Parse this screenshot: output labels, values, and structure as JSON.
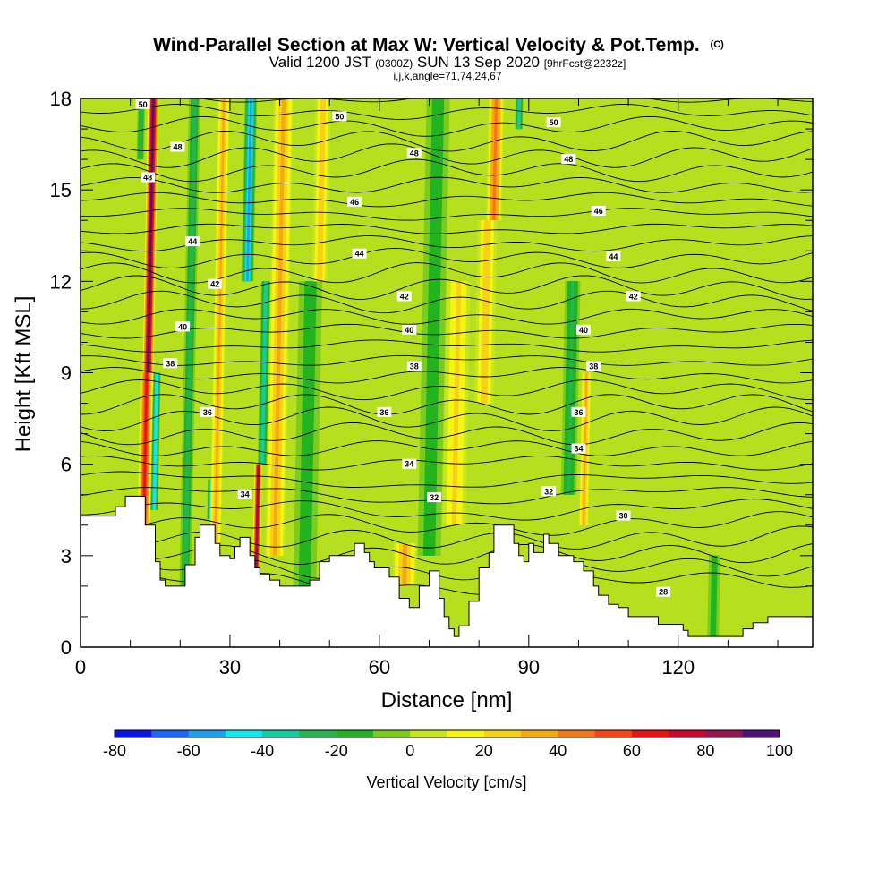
{
  "chart_data": {
    "type": "heatmap",
    "title": {
      "main": "Wind-Parallel Section at Max W: Vertical Velocity & Pot.Temp.",
      "copyright": "(C)",
      "valid_prefix": "Valid 1200 JST",
      "valid_utc": "(0300Z)",
      "valid_date": "SUN 13 Sep 2020",
      "forecast": "[9hrFcst@2232z]",
      "line3": "i,j,k,angle=71,74,24,67"
    },
    "xlabel": "Distance [nm]",
    "ylabel": "Height [Kft MSL]",
    "xlim": [
      0,
      147
    ],
    "ylim": [
      0,
      18
    ],
    "x_ticks": [
      "0",
      "30",
      "60",
      "90",
      "120"
    ],
    "x_tick_values": [
      0,
      30,
      60,
      90,
      120
    ],
    "y_ticks": [
      "0",
      "3",
      "6",
      "9",
      "12",
      "15",
      "18"
    ],
    "y_tick_values": [
      0,
      3,
      6,
      9,
      12,
      15,
      18
    ],
    "colorbar": {
      "title": "Vertical Velocity [cm/s]",
      "range": [
        -80,
        100
      ],
      "tick_labels": [
        "-80",
        "-60",
        "-40",
        "-20",
        "0",
        "20",
        "40",
        "60",
        "80",
        "100"
      ],
      "tick_values": [
        -80,
        -60,
        -40,
        -20,
        0,
        20,
        40,
        60,
        80,
        100
      ],
      "colors": [
        "#0a14e6",
        "#1e64f5",
        "#1ea0f0",
        "#14e6f0",
        "#14cca0",
        "#28b450",
        "#21b41e",
        "#7ccc1e",
        "#c8e61e",
        "#f5f514",
        "#f5d214",
        "#f5aa14",
        "#f57814",
        "#f54614",
        "#e61414",
        "#c80a32",
        "#961450",
        "#501478"
      ]
    },
    "terrain_kft": [
      [
        0,
        4.3
      ],
      [
        5,
        4.3
      ],
      [
        7,
        4.6
      ],
      [
        9,
        4.95
      ],
      [
        12,
        4.95
      ],
      [
        13,
        4.0
      ],
      [
        15,
        2.8
      ],
      [
        16,
        2.2
      ],
      [
        17,
        2.0
      ],
      [
        20,
        2.0
      ],
      [
        21,
        2.7
      ],
      [
        23,
        3.6
      ],
      [
        24,
        4.0
      ],
      [
        26,
        4.0
      ],
      [
        27,
        3.4
      ],
      [
        28,
        3.0
      ],
      [
        30,
        2.9
      ],
      [
        31,
        3.3
      ],
      [
        32,
        3.6
      ],
      [
        34,
        3.0
      ],
      [
        35,
        2.6
      ],
      [
        36,
        2.4
      ],
      [
        38,
        2.2
      ],
      [
        40,
        2.0
      ],
      [
        45,
        2.0
      ],
      [
        46,
        2.2
      ],
      [
        48,
        2.8
      ],
      [
        50,
        3.0
      ],
      [
        53,
        3.0
      ],
      [
        55,
        3.4
      ],
      [
        57,
        3.1
      ],
      [
        58,
        2.8
      ],
      [
        59,
        2.6
      ],
      [
        61,
        2.6
      ],
      [
        62,
        2.3
      ],
      [
        64,
        1.6
      ],
      [
        66,
        1.3
      ],
      [
        68,
        2.0
      ],
      [
        70,
        2.5
      ],
      [
        72,
        1.6
      ],
      [
        73,
        1.0
      ],
      [
        74,
        0.6
      ],
      [
        75,
        0.35
      ],
      [
        76,
        0.7
      ],
      [
        78,
        1.5
      ],
      [
        80,
        2.6
      ],
      [
        82,
        3.1
      ],
      [
        83,
        4.0
      ],
      [
        86,
        4.0
      ],
      [
        87,
        3.4
      ],
      [
        88,
        3.0
      ],
      [
        89,
        2.8
      ],
      [
        90,
        3.4
      ],
      [
        91,
        3.1
      ],
      [
        93,
        3.7
      ],
      [
        94,
        3.4
      ],
      [
        96,
        3.0
      ],
      [
        98,
        3.0
      ],
      [
        99,
        2.8
      ],
      [
        101,
        2.5
      ],
      [
        103,
        2.0
      ],
      [
        104,
        1.7
      ],
      [
        106,
        1.4
      ],
      [
        108,
        1.3
      ],
      [
        110,
        1.0
      ],
      [
        116,
        0.75
      ],
      [
        118,
        0.75
      ],
      [
        121,
        0.55
      ],
      [
        122,
        0.35
      ],
      [
        131,
        0.35
      ],
      [
        133,
        0.6
      ],
      [
        135,
        0.8
      ],
      [
        138,
        1.0
      ],
      [
        147,
        1.0
      ]
    ],
    "theta_levels_K": [
      28,
      30,
      32,
      34,
      36,
      38,
      40,
      42,
      44,
      46,
      48,
      50
    ],
    "theta_labels": [
      {
        "text": "50",
        "x": 12.5,
        "y": 17.8
      },
      {
        "text": "48",
        "x": 19.5,
        "y": 16.4
      },
      {
        "text": "48",
        "x": 13.5,
        "y": 15.4
      },
      {
        "text": "44",
        "x": 22.5,
        "y": 13.3
      },
      {
        "text": "42",
        "x": 27,
        "y": 11.9
      },
      {
        "text": "40",
        "x": 20.5,
        "y": 10.5
      },
      {
        "text": "38",
        "x": 18,
        "y": 9.3
      },
      {
        "text": "36",
        "x": 25.5,
        "y": 7.7
      },
      {
        "text": "34",
        "x": 33,
        "y": 5.0
      },
      {
        "text": "50",
        "x": 52,
        "y": 17.4
      },
      {
        "text": "48",
        "x": 67,
        "y": 16.2
      },
      {
        "text": "46",
        "x": 55,
        "y": 14.6
      },
      {
        "text": "44",
        "x": 56,
        "y": 12.9
      },
      {
        "text": "42",
        "x": 65,
        "y": 11.5
      },
      {
        "text": "40",
        "x": 66,
        "y": 10.4
      },
      {
        "text": "38",
        "x": 67,
        "y": 9.2
      },
      {
        "text": "36",
        "x": 61,
        "y": 7.7
      },
      {
        "text": "34",
        "x": 66,
        "y": 6.0
      },
      {
        "text": "32",
        "x": 71,
        "y": 4.9
      },
      {
        "text": "50",
        "x": 95,
        "y": 17.2
      },
      {
        "text": "48",
        "x": 98,
        "y": 16.0
      },
      {
        "text": "46",
        "x": 104,
        "y": 14.3
      },
      {
        "text": "44",
        "x": 107,
        "y": 12.8
      },
      {
        "text": "42",
        "x": 111,
        "y": 11.5
      },
      {
        "text": "40",
        "x": 101,
        "y": 10.4
      },
      {
        "text": "38",
        "x": 103,
        "y": 9.2
      },
      {
        "text": "36",
        "x": 100,
        "y": 7.7
      },
      {
        "text": "34",
        "x": 100,
        "y": 6.5
      },
      {
        "text": "32",
        "x": 94,
        "y": 5.1
      },
      {
        "text": "30",
        "x": 109,
        "y": 4.3
      },
      {
        "text": "28",
        "x": 117,
        "y": 1.8
      }
    ],
    "updraft_bands_cm_s": [
      {
        "x": 13.5,
        "peak": 95,
        "width": 1.4,
        "ylo": 8.5,
        "yhi": 18
      },
      {
        "x": 12.7,
        "peak": 65,
        "width": 1.6,
        "ylo": 4,
        "yhi": 9
      },
      {
        "x": 35.3,
        "peak": 85,
        "width": 1.0,
        "ylo": 2.6,
        "yhi": 6
      },
      {
        "x": 39,
        "peak": 35,
        "width": 2.5,
        "ylo": 3,
        "yhi": 18
      },
      {
        "x": 27,
        "peak": 30,
        "width": 1.5,
        "ylo": 3,
        "yhi": 18
      },
      {
        "x": 65,
        "peak": 30,
        "width": 3.0,
        "ylo": 2.0,
        "yhi": 3.4
      },
      {
        "x": 83,
        "peak": 45,
        "width": 2.0,
        "ylo": 14,
        "yhi": 18
      },
      {
        "x": 81,
        "peak": 25,
        "width": 2.5,
        "ylo": 8,
        "yhi": 14
      },
      {
        "x": 101,
        "peak": 35,
        "width": 1.2,
        "ylo": 4,
        "yhi": 9
      },
      {
        "x": 75,
        "peak": 20,
        "width": 3,
        "ylo": 4,
        "yhi": 12
      },
      {
        "x": 48,
        "peak": 25,
        "width": 2,
        "ylo": 12,
        "yhi": 18
      }
    ],
    "downdraft_bands_cm_s": [
      {
        "x": 14.8,
        "peak": -50,
        "width": 1.0,
        "ylo": 4.5,
        "yhi": 9
      },
      {
        "x": 12,
        "peak": -30,
        "width": 1.0,
        "ylo": 16,
        "yhi": 18
      },
      {
        "x": 33.5,
        "peak": -55,
        "width": 1.6,
        "ylo": 12,
        "yhi": 18
      },
      {
        "x": 36.5,
        "peak": -40,
        "width": 1.2,
        "ylo": 6,
        "yhi": 12
      },
      {
        "x": 26,
        "peak": -45,
        "width": 0.8,
        "ylo": 4.2,
        "yhi": 5.5
      },
      {
        "x": 88,
        "peak": -40,
        "width": 1.0,
        "ylo": 17,
        "yhi": 18
      },
      {
        "x": 21,
        "peak": -25,
        "width": 1.5,
        "ylo": 2,
        "yhi": 18
      },
      {
        "x": 45,
        "peak": -20,
        "width": 3,
        "ylo": 2,
        "yhi": 12
      },
      {
        "x": 70,
        "peak": -18,
        "width": 3,
        "ylo": 3,
        "yhi": 18
      },
      {
        "x": 98,
        "peak": -22,
        "width": 2,
        "ylo": 5,
        "yhi": 12
      },
      {
        "x": 127,
        "peak": -20,
        "width": 1.5,
        "ylo": 0.3,
        "yhi": 3
      }
    ]
  }
}
